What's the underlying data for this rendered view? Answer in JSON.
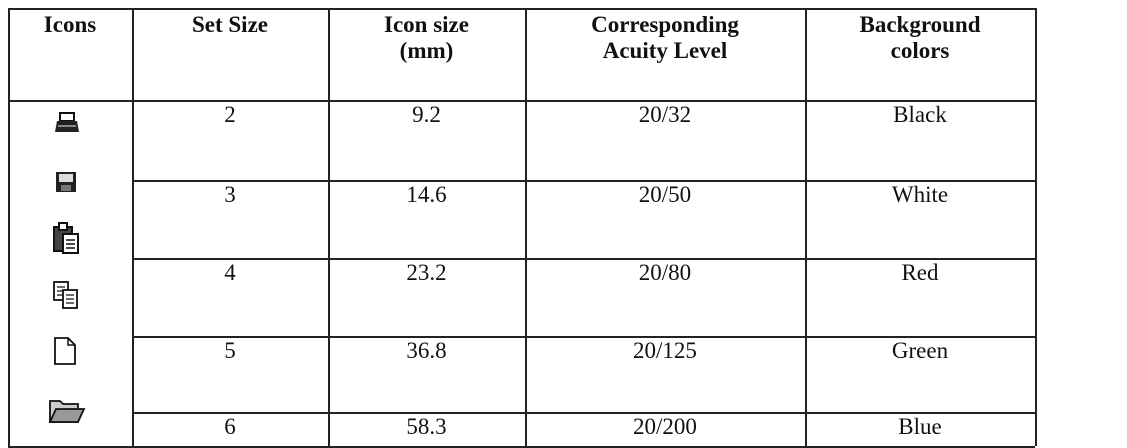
{
  "table": {
    "header": [
      [
        "Icons"
      ],
      [
        "Set Size"
      ],
      [
        "Icon size",
        "(mm)"
      ],
      [
        "Corresponding",
        "Acuity Level"
      ],
      [
        "Background",
        "colors"
      ]
    ],
    "rows": [
      [
        "2",
        "9.2",
        "20/32",
        "Black"
      ],
      [
        "3",
        "14.6",
        "20/50",
        "White"
      ],
      [
        "4",
        "23.2",
        "20/80",
        "Red"
      ],
      [
        "5",
        "36.8",
        "20/125",
        "Green"
      ],
      [
        "6",
        "58.3",
        "20/200",
        "Blue"
      ]
    ]
  }
}
